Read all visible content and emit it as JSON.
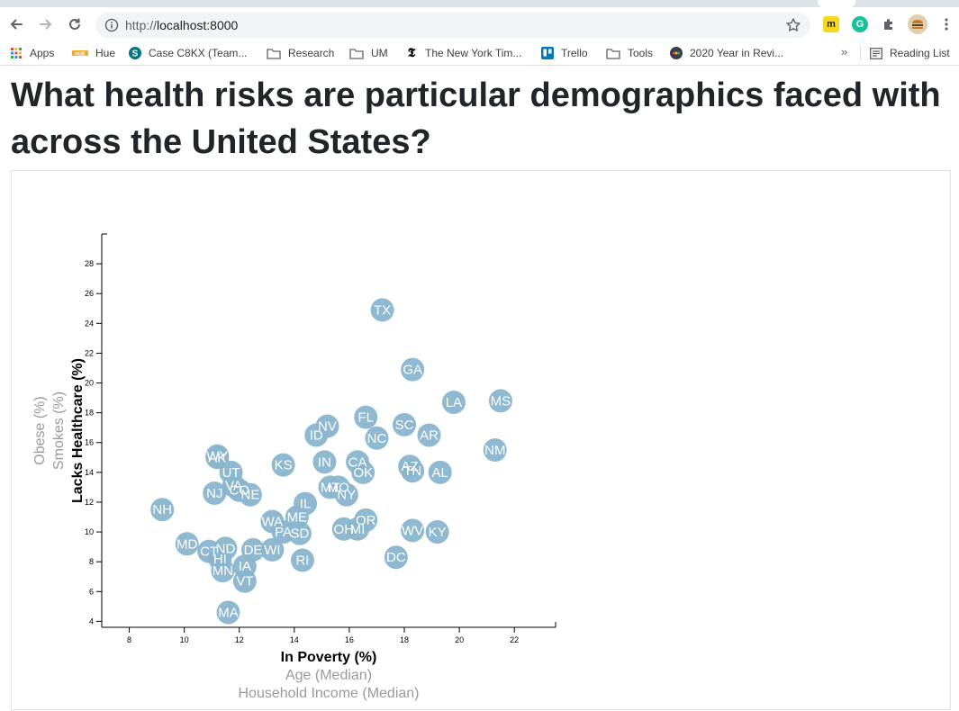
{
  "browser": {
    "url_scheme": "http://",
    "url_host": "localhost:8000",
    "bookmarks": [
      {
        "label": "Apps",
        "icon": "apps-grid-icon"
      },
      {
        "label": "Hue",
        "icon": "hue-icon"
      },
      {
        "label": "Case C8KX (Team...",
        "icon": "sharepoint-icon"
      },
      {
        "label": "Research",
        "icon": "folder-icon"
      },
      {
        "label": "UM",
        "icon": "folder-icon"
      },
      {
        "label": "The New York Tim...",
        "icon": "nyt-icon"
      },
      {
        "label": "Trello",
        "icon": "trello-icon"
      },
      {
        "label": "Tools",
        "icon": "folder-icon"
      },
      {
        "label": "2020 Year in Revi...",
        "icon": "year-in-review-icon"
      }
    ],
    "more_bookmarks": "»",
    "reading_list": "Reading List",
    "colors": {
      "chrome_bg": "#dee1e6",
      "omnibox_bg": "#f1f3f4"
    }
  },
  "page": {
    "title": "What health risks are particular demographics faced with across the United States?"
  },
  "chart_data": {
    "type": "scatter",
    "x_axis": {
      "labels": [
        "In Poverty (%)",
        "Age (Median)",
        "Household Income (Median)"
      ],
      "active": "In Poverty (%)",
      "range": [
        7,
        23.5
      ],
      "ticks": [
        8,
        10,
        12,
        14,
        16,
        18,
        20,
        22
      ]
    },
    "y_axis": {
      "labels": [
        "Lacks Healthcare (%)",
        "Smokes (%)",
        "Obese (%)"
      ],
      "active": "Lacks Healthcare (%)",
      "range": [
        3.6,
        30
      ],
      "ticks": [
        4,
        6,
        8,
        10,
        12,
        14,
        16,
        18,
        20,
        22,
        24,
        26,
        28
      ]
    },
    "marker_color": "#89b5cd",
    "points": [
      {
        "state": "TX",
        "poverty": 17.2,
        "healthcare": 24.9
      },
      {
        "state": "GA",
        "poverty": 18.3,
        "healthcare": 20.9
      },
      {
        "state": "LA",
        "poverty": 19.8,
        "healthcare": 18.7
      },
      {
        "state": "MS",
        "poverty": 21.5,
        "healthcare": 18.8
      },
      {
        "state": "FL",
        "poverty": 16.6,
        "healthcare": 17.7
      },
      {
        "state": "SC",
        "poverty": 18.0,
        "healthcare": 17.2
      },
      {
        "state": "NV",
        "poverty": 15.2,
        "healthcare": 17.1
      },
      {
        "state": "AR",
        "poverty": 18.9,
        "healthcare": 16.5
      },
      {
        "state": "NM",
        "poverty": 21.3,
        "healthcare": 15.5
      },
      {
        "state": "ID",
        "poverty": 14.8,
        "healthcare": 16.5
      },
      {
        "state": "NC",
        "poverty": 17.0,
        "healthcare": 16.3
      },
      {
        "state": "AK",
        "poverty": 11.2,
        "healthcare": 15.0
      },
      {
        "state": "WY",
        "poverty": 11.2,
        "healthcare": 15.1
      },
      {
        "state": "IN",
        "poverty": 15.1,
        "healthcare": 14.7
      },
      {
        "state": "CA",
        "poverty": 16.3,
        "healthcare": 14.7
      },
      {
        "state": "KS",
        "poverty": 13.6,
        "healthcare": 14.5
      },
      {
        "state": "AZ",
        "poverty": 18.2,
        "healthcare": 14.4
      },
      {
        "state": "TN",
        "poverty": 18.3,
        "healthcare": 14.1
      },
      {
        "state": "AL",
        "poverty": 19.3,
        "healthcare": 14.0
      },
      {
        "state": "OK",
        "poverty": 16.5,
        "healthcare": 14.0
      },
      {
        "state": "UT",
        "poverty": 11.7,
        "healthcare": 14.0
      },
      {
        "state": "VA",
        "poverty": 11.8,
        "healthcare": 13.1
      },
      {
        "state": "CO",
        "poverty": 12.0,
        "healthcare": 12.8
      },
      {
        "state": "NJ",
        "poverty": 11.1,
        "healthcare": 12.6
      },
      {
        "state": "NE",
        "poverty": 12.4,
        "healthcare": 12.5
      },
      {
        "state": "MT",
        "poverty": 15.3,
        "healthcare": 13.0
      },
      {
        "state": "MO",
        "poverty": 15.6,
        "healthcare": 13.0
      },
      {
        "state": "NY",
        "poverty": 15.9,
        "healthcare": 12.5
      },
      {
        "state": "IL",
        "poverty": 14.4,
        "healthcare": 11.9
      },
      {
        "state": "NH",
        "poverty": 9.2,
        "healthcare": 11.5
      },
      {
        "state": "OR",
        "poverty": 16.6,
        "healthcare": 10.8
      },
      {
        "state": "ME",
        "poverty": 14.1,
        "healthcare": 11.0
      },
      {
        "state": "WA",
        "poverty": 13.2,
        "healthcare": 10.7
      },
      {
        "state": "PA",
        "poverty": 13.6,
        "healthcare": 10.0
      },
      {
        "state": "SD",
        "poverty": 14.2,
        "healthcare": 9.9
      },
      {
        "state": "OH",
        "poverty": 15.8,
        "healthcare": 10.2
      },
      {
        "state": "MI",
        "poverty": 16.3,
        "healthcare": 10.2
      },
      {
        "state": "WV",
        "poverty": 18.3,
        "healthcare": 10.1
      },
      {
        "state": "KY",
        "poverty": 19.2,
        "healthcare": 10.0
      },
      {
        "state": "MD",
        "poverty": 10.1,
        "healthcare": 9.2
      },
      {
        "state": "CT",
        "poverty": 10.9,
        "healthcare": 8.7
      },
      {
        "state": "ND",
        "poverty": 11.5,
        "healthcare": 8.9
      },
      {
        "state": "DE",
        "poverty": 12.5,
        "healthcare": 8.8
      },
      {
        "state": "WI",
        "poverty": 13.2,
        "healthcare": 8.8
      },
      {
        "state": "HI",
        "poverty": 11.3,
        "healthcare": 8.2
      },
      {
        "state": "IA",
        "poverty": 12.2,
        "healthcare": 7.7
      },
      {
        "state": "MN",
        "poverty": 11.4,
        "healthcare": 7.4
      },
      {
        "state": "VT",
        "poverty": 12.2,
        "healthcare": 6.7
      },
      {
        "state": "RI",
        "poverty": 14.3,
        "healthcare": 8.1
      },
      {
        "state": "DC",
        "poverty": 17.7,
        "healthcare": 8.3
      },
      {
        "state": "MA",
        "poverty": 11.6,
        "healthcare": 4.6
      }
    ]
  }
}
